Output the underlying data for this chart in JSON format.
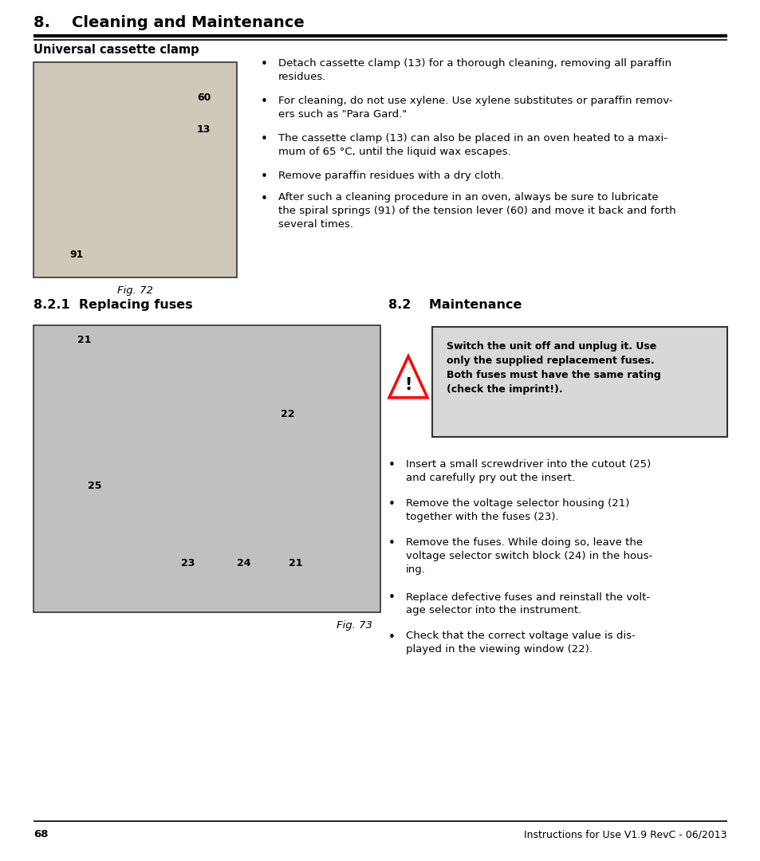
{
  "page_width": 9.54,
  "page_height": 10.8,
  "bg_color": "#ffffff",
  "ml": 0.42,
  "mr": 0.42,
  "header_title": "8.    Cleaning and Maintenance",
  "section_universal": "Universal cassette clamp",
  "section_821": "8.2.1  Replacing fuses",
  "section_82": "8.2    Maintenance",
  "fig72_caption": "Fig. 72",
  "fig73_caption": "Fig. 73",
  "bullet_points_universal": [
    "Detach cassette clamp (13) for a thorough cleaning, removing all paraffin\nresidues.",
    "For cleaning, do not use xylene. Use xylene substitutes or paraffin remov-\ners such as \"Para Gard.\"",
    "The cassette clamp (13) can also be placed in an oven heated to a maxi-\nmum of 65 °C, until the liquid wax escapes.",
    "Remove paraffin residues with a dry cloth.",
    "After such a cleaning procedure in an oven, always be sure to lubricate\nthe spiral springs (91) of the tension lever (60) and move it back and forth\nseveral times."
  ],
  "warning_text_lines": [
    "Switch the unit off and unplug it. Use",
    "only the supplied replacement fuses.",
    "Both fuses must have the same rating",
    "(check the imprint!)."
  ],
  "bullet_points_82": [
    "Insert a small screwdriver into the cutout (25)\nand carefully pry out the insert.",
    "Remove the voltage selector housing (21)\ntogether with the fuses (23).",
    "Remove the fuses. While doing so, leave the\nvoltage selector switch block (24) in the hous-\ning.",
    "Replace defective fuses and reinstall the volt-\nage selector into the instrument.",
    "Check that the correct voltage value is dis-\nplayed in the viewing window (22)."
  ],
  "footer_page": "68",
  "footer_right": "Instructions for Use V1.9 RevC - 06/2013",
  "text_color": "#000000",
  "warning_bg_color": "#d8d8d8",
  "line_color": "#000000"
}
